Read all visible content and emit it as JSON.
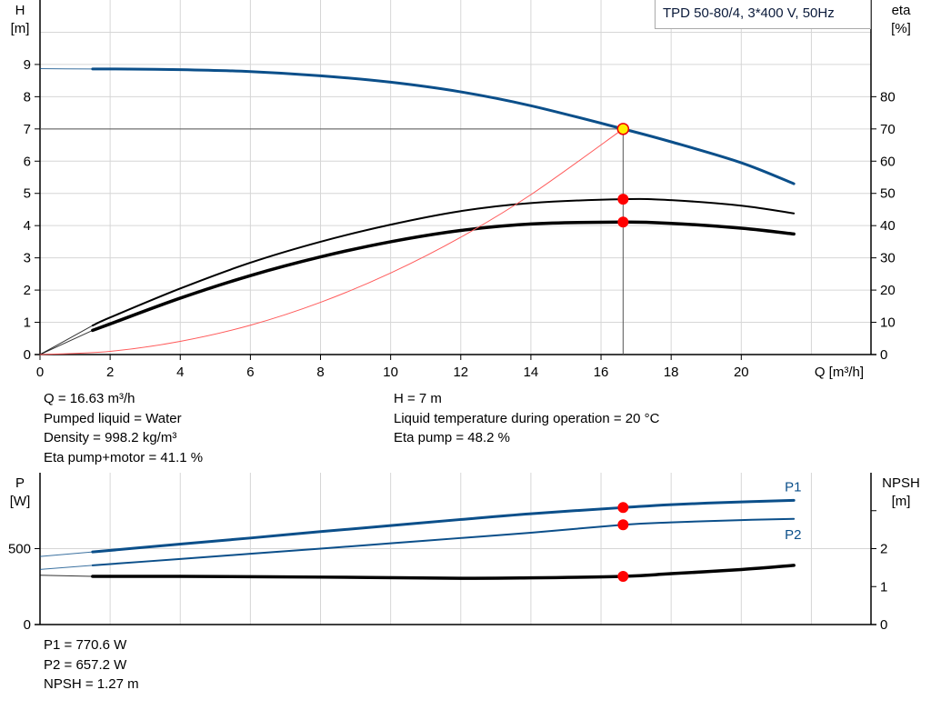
{
  "chart_data": [
    {
      "type": "line",
      "title": "TPD 50-80/4, 3*400 V, 50Hz",
      "xlabel": "Q [m³/h]",
      "ylabel_left": [
        "H",
        "[m]"
      ],
      "ylabel_right": [
        "eta",
        "[%]"
      ],
      "xlim": [
        0,
        23.7
      ],
      "ylim_left": [
        0,
        11
      ],
      "ylim_right": [
        0,
        110
      ],
      "xticks": [
        0,
        2,
        4,
        6,
        8,
        10,
        12,
        14,
        16,
        18,
        20
      ],
      "yticks_left": [
        0,
        1,
        2,
        3,
        4,
        5,
        6,
        7,
        8,
        9
      ],
      "yticks_right": [
        0,
        10,
        20,
        30,
        40,
        50,
        60,
        70,
        80
      ],
      "grid": true,
      "legend": "top-right",
      "series": [
        {
          "key": "H",
          "axis": "left",
          "color": "#0b4f8a",
          "width": 3,
          "range_start": 1.5,
          "x": [
            0,
            1.5,
            2,
            4,
            6,
            8,
            10,
            12,
            14,
            16.63,
            18,
            20,
            21.5
          ],
          "y": [
            8.87,
            8.86,
            8.86,
            8.84,
            8.78,
            8.65,
            8.45,
            8.15,
            7.72,
            7.0,
            6.6,
            5.95,
            5.3
          ]
        },
        {
          "key": "eta_pump",
          "axis": "right",
          "color": "#000000",
          "width": 2,
          "range_start": 1.5,
          "x": [
            0,
            1.5,
            2,
            4,
            6,
            8,
            10,
            12,
            14,
            16.63,
            18,
            20,
            21.5
          ],
          "y": [
            0,
            9,
            11.5,
            20.5,
            28.5,
            35,
            40.3,
            44.5,
            47,
            48.2,
            47.9,
            46.2,
            43.8
          ]
        },
        {
          "key": "eta_pump_motor",
          "axis": "right",
          "color": "#000000",
          "width": 3.5,
          "range_start": 1.5,
          "x": [
            0,
            1.5,
            2,
            4,
            6,
            8,
            10,
            12,
            14,
            16.63,
            18,
            20,
            21.5
          ],
          "y": [
            0,
            7.5,
            9.5,
            17.5,
            24.5,
            30.3,
            35,
            38.5,
            40.5,
            41.1,
            40.7,
            39.2,
            37.4
          ]
        },
        {
          "key": "system",
          "axis": "left",
          "color": "#ff5a5a",
          "width": 1,
          "range_start": 0,
          "x": [
            0,
            2,
            4,
            6,
            8,
            10,
            12,
            14,
            16.63
          ],
          "y": [
            0,
            0.1,
            0.41,
            0.91,
            1.62,
            2.53,
            3.64,
            4.96,
            7.0
          ]
        }
      ],
      "operating_point": {
        "Q": 16.63,
        "H": 7,
        "eta_pump": 48.2,
        "eta_pump_motor": 41.1,
        "color": "#ffee00"
      }
    },
    {
      "type": "line",
      "xlim": [
        0,
        23.7
      ],
      "ylabel_left": [
        "P",
        "[W]"
      ],
      "ylabel_right": [
        "NPSH",
        "[m]"
      ],
      "ylim_left": [
        0,
        1000
      ],
      "ylim_right": [
        0,
        4
      ],
      "yticks_left": [
        0,
        500
      ],
      "yticks_right": [
        0,
        1,
        2,
        3
      ],
      "yticklabels_right": [
        "0",
        "1",
        "2",
        ""
      ],
      "grid": true,
      "series": [
        {
          "key": "P1",
          "name": "P1",
          "axis": "left",
          "color": "#0b4f8a",
          "width": 3,
          "range_start": 1.5,
          "x": [
            0,
            1.5,
            4,
            6,
            8,
            10,
            12,
            14,
            16.63,
            18,
            20,
            21.5
          ],
          "y": [
            448,
            478,
            530,
            570,
            612,
            652,
            692,
            730,
            770.6,
            790,
            808,
            818
          ]
        },
        {
          "key": "P2",
          "name": "P2",
          "axis": "left",
          "color": "#0b4f8a",
          "width": 2,
          "range_start": 1.5,
          "x": [
            0,
            1.5,
            4,
            6,
            8,
            10,
            12,
            14,
            16.63,
            18,
            20,
            21.5
          ],
          "y": [
            363,
            390,
            432,
            466,
            500,
            535,
            570,
            605,
            657.2,
            673,
            688,
            696
          ]
        },
        {
          "key": "NPSH",
          "name": "",
          "axis": "right",
          "color": "#000000",
          "width": 3.5,
          "range_start": 1.5,
          "x": [
            0,
            1.5,
            4,
            8,
            12,
            14,
            16.63,
            18,
            20,
            21.5
          ],
          "y": [
            1.3,
            1.27,
            1.27,
            1.25,
            1.22,
            1.23,
            1.27,
            1.34,
            1.45,
            1.56
          ]
        }
      ],
      "operating_point": {
        "Q": 16.63,
        "P1": 770.6,
        "P2": 657.2,
        "NPSH": 1.27
      }
    }
  ],
  "info_top_left": [
    "Q = 16.63 m³/h",
    "Pumped liquid = Water",
    "Density = 998.2 kg/m³",
    "Eta pump+motor = 41.1 %"
  ],
  "info_top_right": [
    "H = 7 m",
    "Liquid temperature during operation = 20 °C",
    "Eta pump = 48.2 %"
  ],
  "info_bottom": [
    "P1 = 770.6 W",
    "P2 = 657.2 W",
    "NPSH = 1.27 m"
  ]
}
